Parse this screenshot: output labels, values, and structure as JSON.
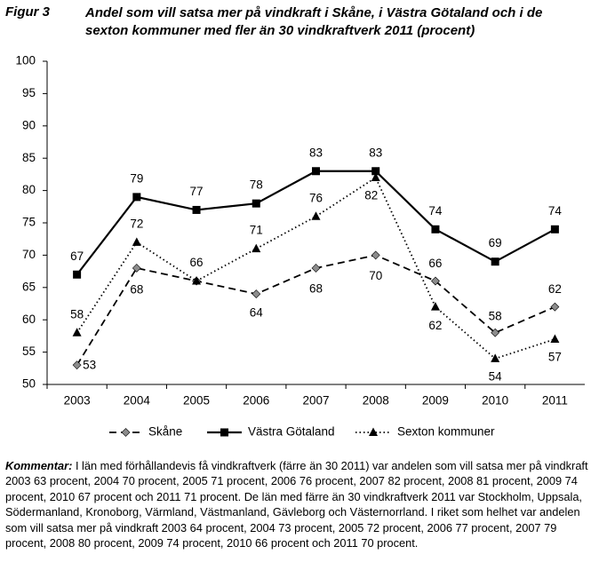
{
  "chart_data": {
    "type": "line",
    "figure_label": "Figur 3",
    "title": "Andel som vill satsa mer på vindkraft i Skåne, i Västra Götaland och i de sexton kommuner med fler än 30 vindkraftverk 2011 (procent)",
    "categories": [
      "2003",
      "2004",
      "2005",
      "2006",
      "2007",
      "2008",
      "2009",
      "2010",
      "2011"
    ],
    "series": [
      {
        "name": "Skåne",
        "color": "#000000",
        "marker_color": "#8c8c8c",
        "marker": "diamond",
        "dash": "dashed",
        "values": [
          53,
          68,
          66,
          64,
          68,
          70,
          66,
          58,
          62
        ]
      },
      {
        "name": "Västra Götaland",
        "color": "#000000",
        "marker_color": "#000000",
        "marker": "square",
        "dash": "solid",
        "values": [
          67,
          79,
          77,
          78,
          83,
          83,
          74,
          69,
          74
        ]
      },
      {
        "name": "Sexton kommuner",
        "color": "#000000",
        "marker_color": "#000000",
        "marker": "triangle",
        "dash": "dotted",
        "values": [
          58,
          72,
          66,
          71,
          76,
          82,
          62,
          54,
          57
        ]
      }
    ],
    "ylim": [
      50,
      100
    ],
    "yticks": [
      50,
      55,
      60,
      65,
      70,
      75,
      80,
      85,
      90,
      95,
      100
    ],
    "grid": false,
    "legend": "bottom",
    "note_label": "Kommentar:",
    "note": "I län med förhållandevis få vindkraftverk (färre än 30 2011) var andelen som vill satsa mer på vindkraft 2003 63 procent, 2004 70 procent, 2005 71 procent, 2006 76 procent, 2007 82 procent, 2008 81 procent, 2009 74 procent, 2010 67 procent och 2011 71 procent. De län med färre än 30 vindkraftverk 2011 var Stockholm, Uppsala, Södermanland, Kronoborg, Värmland, Västmanland, Gävleborg och Västernorrland. I riket som helhet var andelen som vill satsa mer på vindkraft 2003 64 procent, 2004 73 procent, 2005 72 procent, 2006 77 procent, 2007 79 procent, 2008 80 procent, 2009 74 procent, 2010 66 procent och 2011 70 procent."
  }
}
